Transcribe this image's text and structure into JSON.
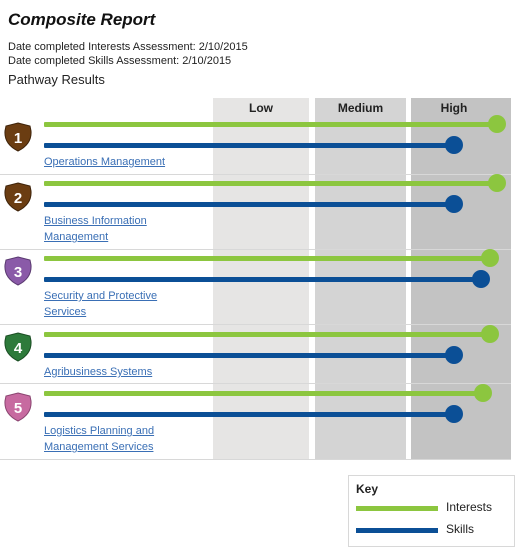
{
  "report": {
    "title": "Composite Report",
    "interests_completed": "Date completed Interests Assessment: 2/10/2015",
    "skills_completed": "Date completed Skills Assessment: 2/10/2015",
    "section_title": "Pathway Results"
  },
  "scale": {
    "low": "Low",
    "medium": "Medium",
    "high": "High"
  },
  "colors": {
    "interests": "#8cc63f",
    "skills": "#0b4f96",
    "shield_brown": "#6b3d12",
    "shield_purple": "#8a5aa8",
    "shield_green": "#2d7a3a",
    "shield_pink": "#c76aa0"
  },
  "pathways": [
    {
      "rank": "1",
      "name_line1": "Operations Management",
      "name_line2": "",
      "interest_fraction": 0.995,
      "skill_fraction": 0.9,
      "shield": "brown"
    },
    {
      "rank": "2",
      "name_line1": "Business Information",
      "name_line2": "Management",
      "interest_fraction": 0.995,
      "skill_fraction": 0.9,
      "shield": "brown"
    },
    {
      "rank": "3",
      "name_line1": "Security and Protective",
      "name_line2": "Services",
      "interest_fraction": 0.98,
      "skill_fraction": 0.96,
      "shield": "purple"
    },
    {
      "rank": "4",
      "name_line1": "Agribusiness Systems",
      "name_line2": "",
      "interest_fraction": 0.98,
      "skill_fraction": 0.9,
      "shield": "green"
    },
    {
      "rank": "5",
      "name_line1": "Logistics Planning and",
      "name_line2": "Management Services",
      "interest_fraction": 0.965,
      "skill_fraction": 0.9,
      "shield": "pink"
    }
  ],
  "key": {
    "title": "Key",
    "interests_label": "Interests",
    "skills_label": "Skills"
  }
}
